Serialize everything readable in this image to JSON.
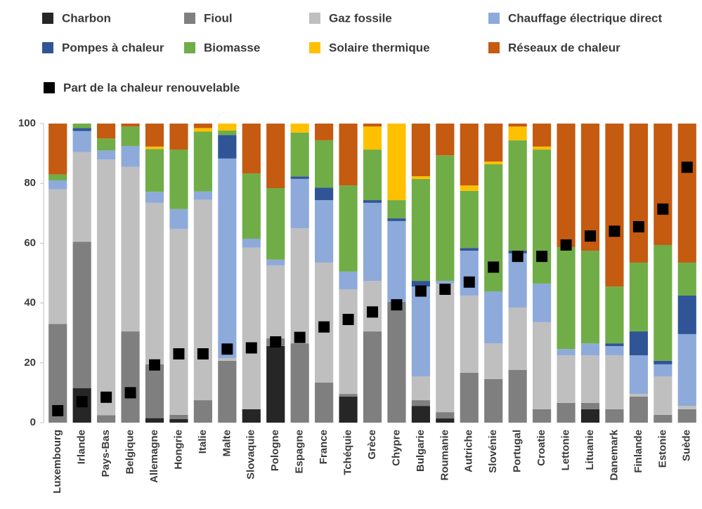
{
  "chart_data": {
    "type": "bar",
    "stacked": true,
    "categories": [
      "Luxembourg",
      "Irlande",
      "Pays-Bas",
      "Belgique",
      "Allemagne",
      "Hongrie",
      "Italie",
      "Malte",
      "Slovaquie",
      "Pologne",
      "Espagne",
      "France",
      "Tchéquie",
      "Grèce",
      "Chypre",
      "Bulgarie",
      "Roumanie",
      "Autriche",
      "Slovénie",
      "Portugal",
      "Croatie",
      "Lettonie",
      "Lituanie",
      "Danemark",
      "Finlande",
      "Estonie",
      "Suède"
    ],
    "series": [
      {
        "name": "Charbon",
        "color": "#262626",
        "values": [
          0,
          11.5,
          0,
          0,
          1.5,
          1.2,
          0,
          0,
          4.5,
          25.6,
          0,
          0,
          8.7,
          0,
          0,
          5.6,
          1.4,
          0,
          0,
          0,
          0,
          0,
          4.5,
          0,
          0,
          0,
          0
        ]
      },
      {
        "name": "Fioul",
        "color": "#7f7f7f",
        "values": [
          33,
          49,
          2.5,
          30.5,
          18,
          1.4,
          7.5,
          20.7,
          0,
          2.6,
          26.5,
          13.4,
          0.9,
          30.5,
          40.4,
          1.9,
          2.1,
          16.7,
          14.6,
          17.6,
          4.5,
          6.6,
          2.1,
          4.5,
          8.7,
          2.6,
          4.5
        ]
      },
      {
        "name": "Gaz fossile",
        "color": "#bfbfbf",
        "values": [
          45,
          30,
          85.5,
          55,
          54,
          62.2,
          67,
          0.9,
          54,
          24.4,
          38.5,
          40.1,
          35,
          16.9,
          0,
          8,
          43,
          25.8,
          11.9,
          20.9,
          29.1,
          15.9,
          15.9,
          18,
          0.9,
          12.9,
          1.1
        ]
      },
      {
        "name": "Chauffage électrique direct",
        "color": "#8eaadb",
        "values": [
          3,
          7,
          3,
          7,
          3.7,
          6.6,
          2.8,
          66.7,
          3,
          1.9,
          16.5,
          20.9,
          5.9,
          26.1,
          27,
          30,
          0.9,
          15,
          17.4,
          18.1,
          12.9,
          2.1,
          4,
          3.1,
          12.9,
          4,
          24
        ]
      },
      {
        "name": "Pompes à chaleur",
        "color": "#2f5597",
        "values": [
          0,
          1,
          0,
          0,
          0,
          0,
          0,
          7.9,
          0,
          0,
          0.8,
          4.2,
          0,
          0.9,
          0.9,
          1.9,
          0,
          0.9,
          0,
          0.9,
          0,
          0,
          0,
          0.9,
          8,
          1.2,
          12.9
        ]
      },
      {
        "name": "Biomasse",
        "color": "#70ad47",
        "values": [
          2,
          1.5,
          4,
          6.5,
          14.3,
          19.9,
          20,
          1.5,
          21.8,
          23.9,
          14.7,
          15.8,
          28.8,
          16.9,
          6.1,
          34.1,
          42,
          19.1,
          42.5,
          36.9,
          44.8,
          34.1,
          31,
          19,
          23,
          38.7,
          11
        ]
      },
      {
        "name": "Solaire thermique",
        "color": "#ffc000",
        "values": [
          0,
          0,
          0,
          0,
          0.8,
          0,
          1.2,
          2.3,
          0,
          0,
          3,
          0,
          0,
          7.7,
          25.6,
          0.9,
          0,
          1.8,
          0.9,
          4.6,
          1,
          0,
          0,
          0,
          0,
          0,
          0
        ]
      },
      {
        "name": "Réseaux de chaleur",
        "color": "#c55a11",
        "values": [
          17,
          0,
          5,
          1,
          7.7,
          8.7,
          1.5,
          0,
          16.7,
          21.6,
          0,
          5.6,
          20.7,
          1,
          0,
          17.6,
          10.6,
          20.7,
          12.7,
          1,
          7.7,
          41.3,
          42.5,
          54.5,
          46.5,
          40.6,
          46.5
        ]
      },
      {
        "name": "Part de la chaleur renouvelable",
        "type": "scatter",
        "color": "#000000",
        "values": [
          4,
          7,
          8.5,
          10,
          19.3,
          23,
          23,
          24.6,
          25,
          27,
          28.5,
          32,
          34.5,
          37,
          39.4,
          44,
          44.6,
          47,
          52,
          55.6,
          55.6,
          59.4,
          62.4,
          64,
          65.5,
          71.4,
          85.4
        ]
      }
    ],
    "ylim": [
      0,
      100
    ],
    "yticks": [
      0,
      20,
      40,
      60,
      80,
      100
    ]
  }
}
